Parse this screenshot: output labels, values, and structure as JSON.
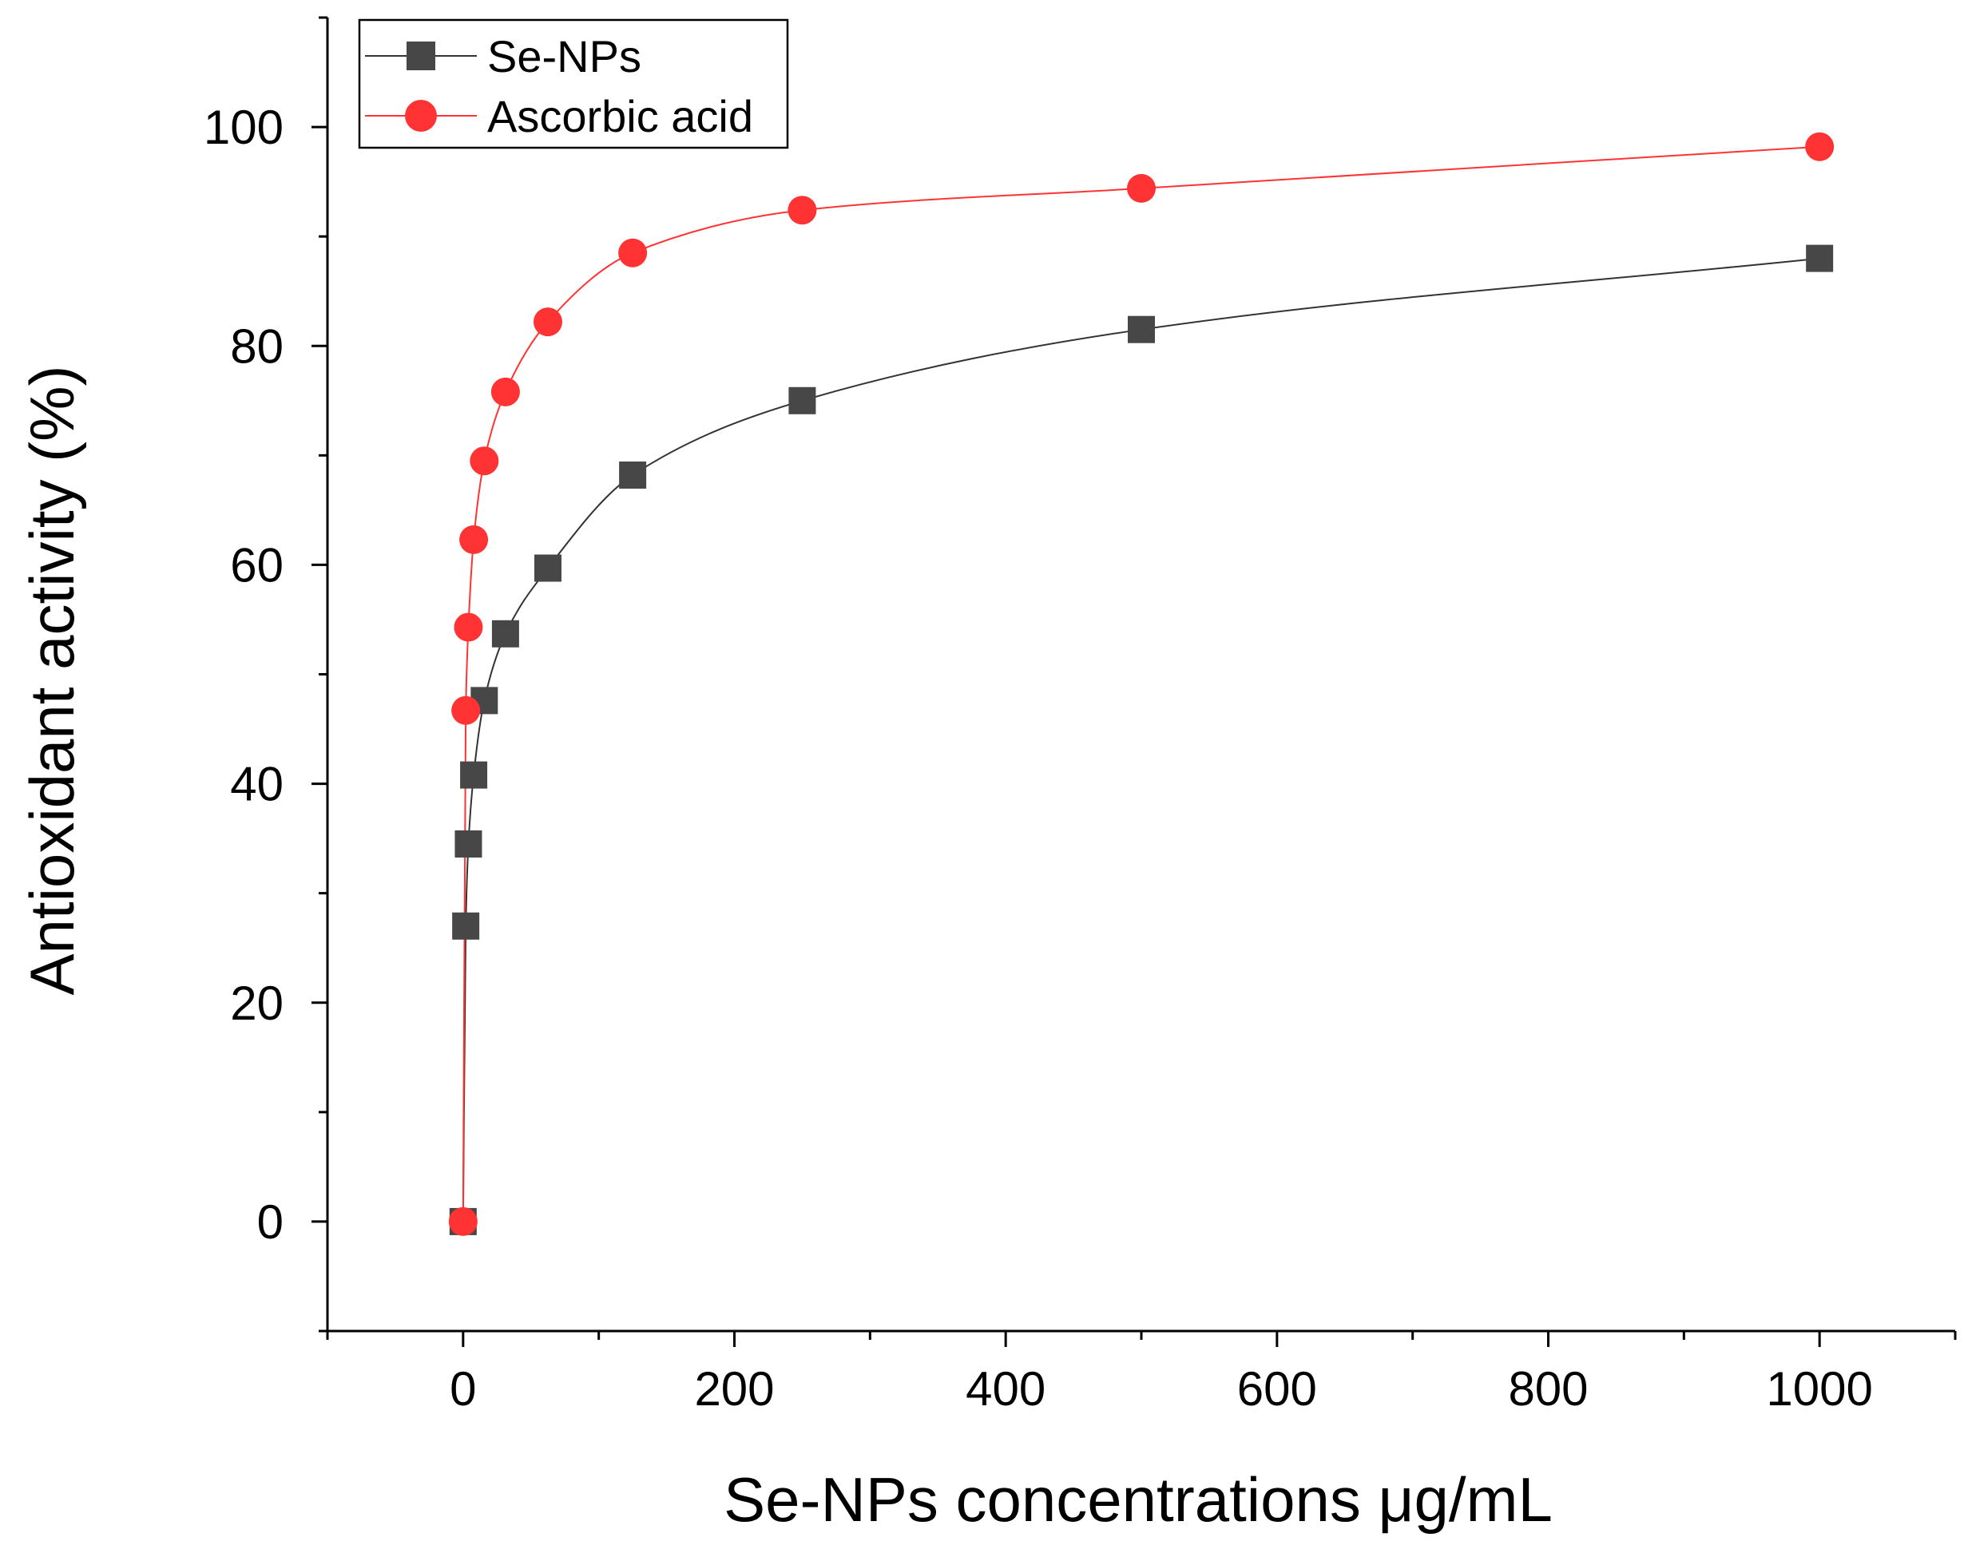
{
  "chart_data": {
    "type": "line",
    "title": "",
    "xlabel": "Se-NPs concentrations μg/mL",
    "ylabel": "Antioxidant activity (%)",
    "xlim": [
      -100,
      1100
    ],
    "ylim": [
      -10,
      110
    ],
    "xticks": [
      0,
      200,
      400,
      600,
      800,
      1000
    ],
    "yticks": [
      0,
      20,
      40,
      60,
      80,
      100
    ],
    "x_tick_labels": [
      "0",
      "200",
      "400",
      "600",
      "800",
      "1000"
    ],
    "y_tick_labels": [
      "0",
      "20",
      "40",
      "60",
      "80",
      "100"
    ],
    "grid": false,
    "legend_position": "top-left",
    "series": [
      {
        "name": "Se-NPs",
        "marker": "square",
        "color": "#474747",
        "line_color": "#333333",
        "x": [
          0,
          1.95,
          3.9,
          7.8,
          15.6,
          31.25,
          62.5,
          125,
          250,
          500,
          1000
        ],
        "y": [
          0,
          27,
          34.5,
          40.8,
          47.6,
          53.7,
          59.7,
          68.2,
          75,
          81.5,
          88
        ]
      },
      {
        "name": "Ascorbic acid",
        "marker": "circle",
        "color": "#ff3333",
        "line_color": "#ff3333",
        "x": [
          0,
          1.95,
          3.9,
          7.8,
          15.6,
          31.25,
          62.5,
          125,
          250,
          500,
          1000
        ],
        "y": [
          0,
          46.7,
          54.3,
          62.3,
          69.5,
          75.8,
          82.2,
          88.5,
          92.4,
          94.4,
          98.2
        ]
      }
    ]
  }
}
